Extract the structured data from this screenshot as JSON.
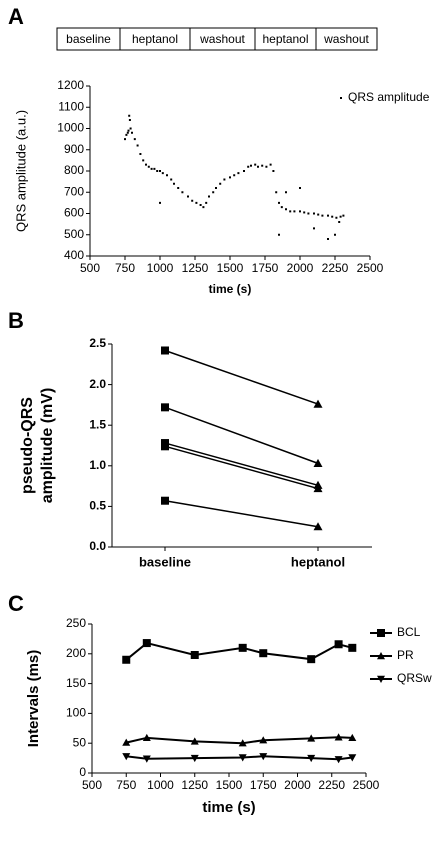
{
  "chart_data": [
    {
      "type": "scatter",
      "panel": "A",
      "protocol": [
        "baseline",
        "heptanol",
        "washout",
        "heptanol",
        "washout"
      ],
      "xlabel": "time (s)",
      "ylabel": "QRS amplitude (a.u.)",
      "series": [
        {
          "name": "QRS amplitude",
          "color": "#000000",
          "x": [
            750,
            760,
            770,
            775,
            780,
            785,
            790,
            800,
            820,
            840,
            860,
            880,
            900,
            920,
            940,
            960,
            980,
            1000,
            1020,
            1050,
            1080,
            1100,
            1130,
            1160,
            1200,
            1230,
            1260,
            1290,
            1310,
            1330,
            1350,
            1380,
            1400,
            1430,
            1460,
            1500,
            1530,
            1560,
            1600,
            1630,
            1650,
            1680,
            1700,
            1730,
            1760,
            1790,
            1810,
            1830,
            1850,
            1870,
            1900,
            1930,
            1960,
            2000,
            2030,
            2060,
            2100,
            2130,
            2160,
            2200,
            2230,
            2260,
            2290,
            2310,
            1000,
            1850,
            1900,
            2000,
            2100,
            2200,
            2250,
            2280
          ],
          "values": [
            950,
            970,
            980,
            990,
            1060,
            1040,
            1000,
            980,
            950,
            920,
            880,
            850,
            830,
            820,
            810,
            810,
            800,
            800,
            790,
            780,
            760,
            740,
            720,
            700,
            680,
            660,
            650,
            640,
            630,
            650,
            680,
            700,
            720,
            740,
            760,
            770,
            780,
            790,
            800,
            820,
            825,
            830,
            820,
            825,
            820,
            830,
            800,
            700,
            650,
            630,
            620,
            610,
            610,
            610,
            605,
            600,
            600,
            595,
            590,
            590,
            585,
            580,
            585,
            590,
            650,
            500,
            700,
            720,
            530,
            480,
            500,
            560
          ]
        }
      ],
      "xlim": [
        500,
        2500
      ],
      "xticks": [
        500,
        750,
        1000,
        1250,
        1500,
        1750,
        2000,
        2250,
        2500
      ],
      "ylim": [
        400,
        1200
      ],
      "yticks": [
        400,
        500,
        600,
        700,
        800,
        900,
        1000,
        1100,
        1200
      ]
    },
    {
      "type": "paired",
      "panel": "B",
      "categories": [
        "baseline",
        "heptanol"
      ],
      "ylabel": [
        "pseudo-QRS",
        "amplitude (mV)"
      ],
      "series": [
        {
          "values": [
            2.42,
            1.76
          ]
        },
        {
          "values": [
            1.72,
            1.03
          ]
        },
        {
          "values": [
            1.28,
            0.76
          ]
        },
        {
          "values": [
            1.24,
            0.72
          ]
        },
        {
          "values": [
            0.57,
            0.25
          ]
        }
      ],
      "color": "#000000",
      "ylim": [
        0,
        2.5
      ],
      "yticks": [
        {
          "value": 0,
          "label": "0.0"
        },
        {
          "value": 0.5,
          "label": "0.5"
        },
        {
          "value": 1,
          "label": "1.0"
        },
        {
          "value": 1.5,
          "label": "1.5"
        },
        {
          "value": 2,
          "label": "2.0"
        },
        {
          "value": 2.5,
          "label": "2.5"
        }
      ]
    },
    {
      "type": "line",
      "panel": "C",
      "xlabel": "time (s)",
      "ylabel": "Intervals (ms)",
      "x": [
        750,
        900,
        1250,
        1600,
        1750,
        2100,
        2300,
        2400
      ],
      "series": [
        {
          "name": "BCL",
          "color": "#000000",
          "marker": "square",
          "values": [
            190,
            218,
            198,
            210,
            201,
            191,
            216,
            210
          ]
        },
        {
          "name": "PR",
          "color": "#000000",
          "marker": "triangle-up",
          "values": [
            51,
            59,
            53,
            50,
            55,
            58,
            60,
            59
          ]
        },
        {
          "name": "QRSw",
          "color": "#000000",
          "marker": "triangle-down",
          "values": [
            28,
            24,
            25,
            26,
            28,
            25,
            23,
            26
          ]
        }
      ],
      "xlim": [
        500,
        2500
      ],
      "xticks": [
        500,
        750,
        1000,
        1250,
        1500,
        1750,
        2000,
        2250,
        2500
      ],
      "ylim": [
        0,
        250
      ],
      "yticks": [
        0,
        50,
        100,
        150,
        200,
        250
      ]
    }
  ]
}
